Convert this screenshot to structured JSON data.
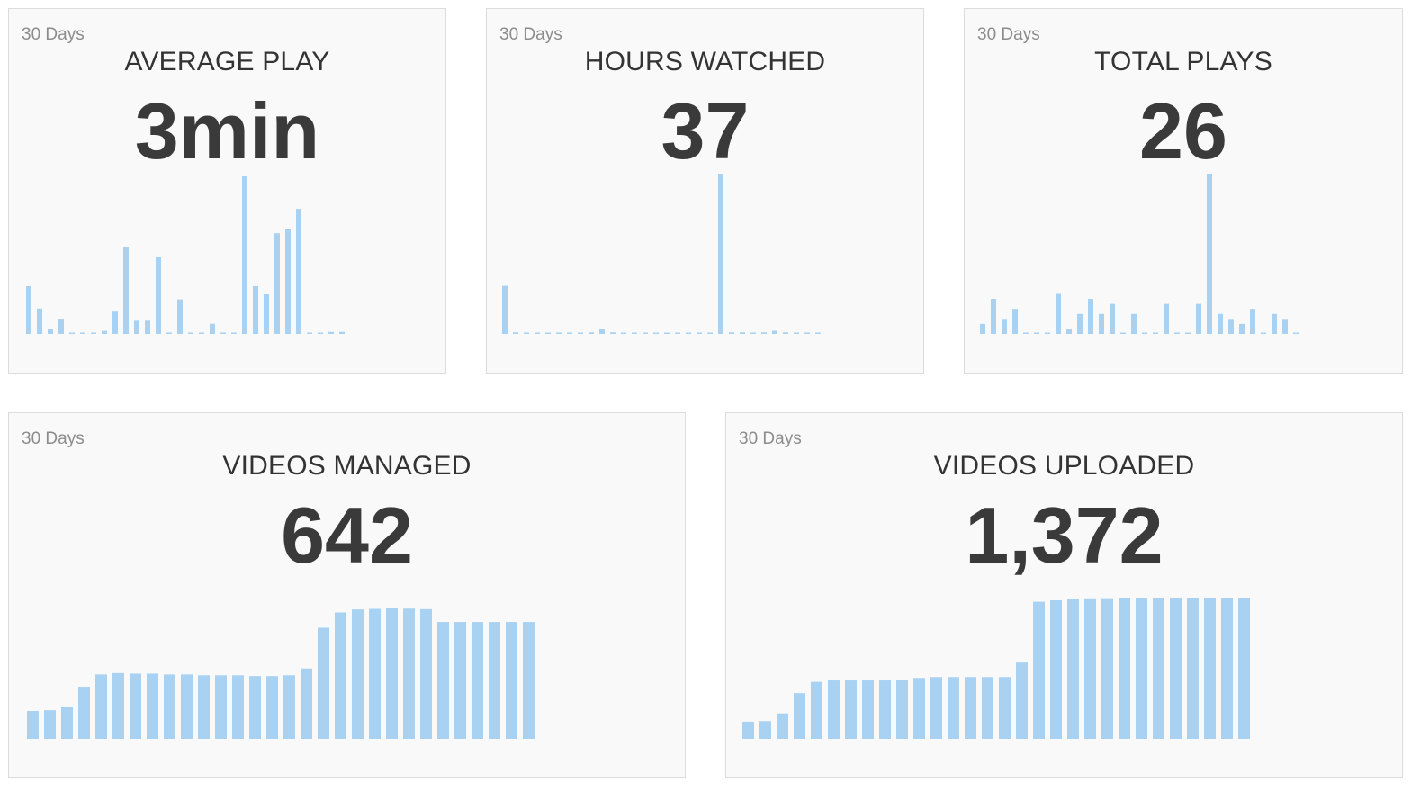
{
  "colors": {
    "bar": "#a8d1f2",
    "card_bg": "#f9f9f9",
    "border": "#dcdcdc"
  },
  "cards": [
    {
      "period": "30 Days",
      "title": "AVERAGE PLAY",
      "value": "3min",
      "chart_data": {
        "type": "bar",
        "values": [
          47,
          25,
          5,
          15,
          1,
          0,
          0,
          3,
          22,
          85,
          13,
          13,
          76,
          0,
          34,
          0,
          0,
          10,
          0,
          1,
          155,
          47,
          39,
          99,
          103,
          123,
          0,
          0,
          2,
          2
        ]
      }
    },
    {
      "period": "30 Days",
      "title": "HOURS WATCHED",
      "value": "37",
      "chart_data": {
        "type": "bar",
        "values": [
          30,
          1,
          0,
          0,
          0,
          0,
          0,
          0,
          1,
          3,
          1,
          0,
          0,
          0,
          0,
          0,
          0,
          0,
          0,
          0,
          100,
          1,
          1,
          0,
          1,
          2,
          1,
          0,
          0,
          0
        ]
      }
    },
    {
      "period": "30 Days",
      "title": "TOTAL PLAYS",
      "value": "26",
      "chart_data": {
        "type": "bar",
        "values": [
          2,
          7,
          3,
          5,
          0,
          0,
          0,
          8,
          1,
          4,
          7,
          4,
          6,
          0,
          4,
          0,
          0,
          6,
          0,
          0,
          6,
          32,
          4,
          3,
          2,
          5,
          0,
          4,
          3,
          0
        ]
      }
    },
    {
      "period": "30 Days",
      "title": "VIDEOS MANAGED",
      "value": "642",
      "chart_data": {
        "type": "bar",
        "values": [
          102,
          105,
          118,
          191,
          236,
          241,
          239,
          239,
          236,
          236,
          233,
          233,
          233,
          230,
          230,
          233,
          258,
          407,
          463,
          474,
          476,
          481,
          477,
          475,
          428,
          428,
          428,
          428,
          428,
          428
        ]
      }
    },
    {
      "period": "30 Days",
      "title": "VIDEOS UPLOADED",
      "value": "1,372",
      "chart_data": {
        "type": "bar",
        "values": [
          171,
          176,
          253,
          454,
          566,
          580,
          580,
          580,
          580,
          588,
          605,
          614,
          614,
          614,
          614,
          614,
          758,
          1361,
          1375,
          1392,
          1395,
          1396,
          1402,
          1402,
          1402,
          1402,
          1402,
          1402,
          1402,
          1402
        ]
      }
    }
  ]
}
